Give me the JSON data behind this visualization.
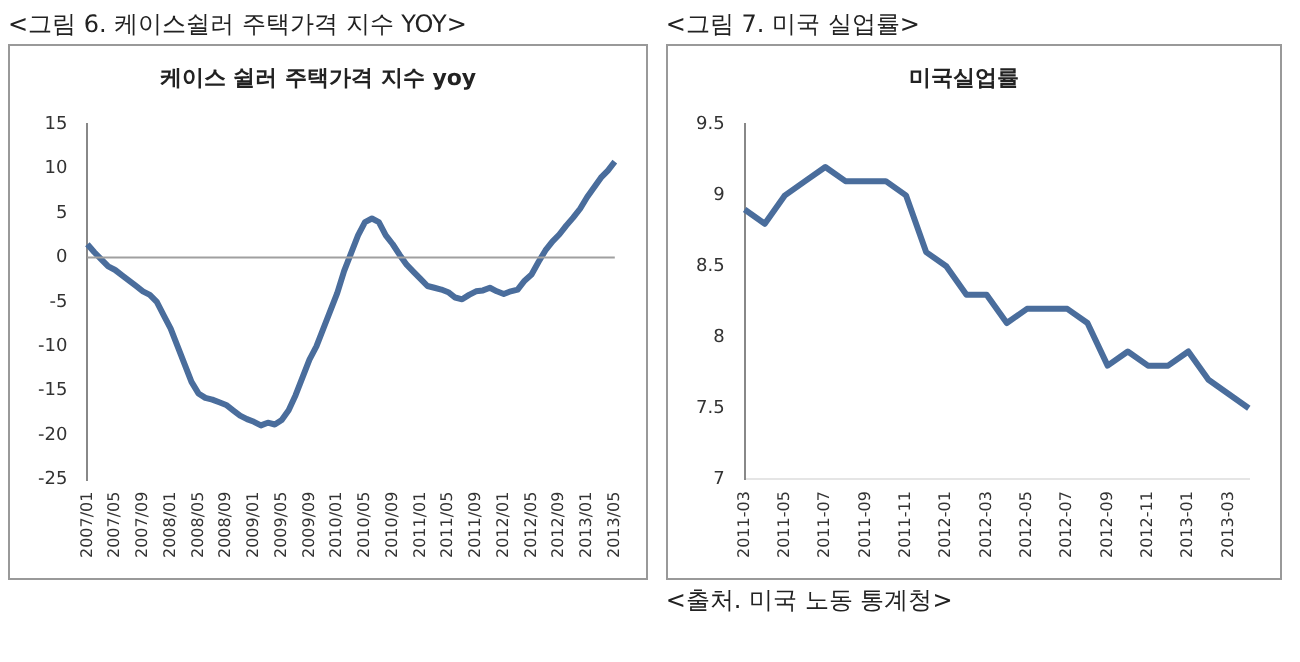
{
  "chart_data": [
    {
      "type": "line",
      "subtitle": "<그림 6. 케이스쉴러 주택가격 지수 YOY>",
      "title": "케이스 쉴러 주택가격 지수 yoy",
      "categories": [
        "2007/01",
        null,
        null,
        null,
        "2007/05",
        null,
        null,
        null,
        "2007/09",
        null,
        null,
        null,
        "2008/01",
        null,
        null,
        null,
        "2008/05",
        null,
        null,
        null,
        "2008/09",
        null,
        null,
        null,
        "2009/01",
        null,
        null,
        null,
        "2009/05",
        null,
        null,
        null,
        "2009/09",
        null,
        null,
        null,
        "2010/01",
        null,
        null,
        null,
        "2010/05",
        null,
        null,
        null,
        "2010/09",
        null,
        null,
        null,
        "2011/01",
        null,
        null,
        null,
        "2011/05",
        null,
        null,
        null,
        "2011/09",
        null,
        null,
        null,
        "2012/01",
        null,
        null,
        null,
        "2012/05",
        null,
        null,
        null,
        "2012/09",
        null,
        null,
        null,
        "2013/01",
        null,
        null,
        null,
        "2013/05"
      ],
      "series": [
        {
          "color": "#4a6d9c",
          "values": [
            1.5,
            0.6,
            -0.2,
            -1.0,
            -1.4,
            -2.0,
            -2.6,
            -3.2,
            -3.8,
            -4.2,
            -5.0,
            -6.5,
            -8.0,
            -10.0,
            -12.0,
            -14.0,
            -15.3,
            -15.8,
            -16.0,
            -16.3,
            -16.6,
            -17.2,
            -17.8,
            -18.2,
            -18.5,
            -18.9,
            -18.6,
            -18.8,
            -18.3,
            -17.2,
            -15.5,
            -13.5,
            -11.5,
            -10.0,
            -8.0,
            -6.0,
            -4.0,
            -1.5,
            0.5,
            2.5,
            4.0,
            4.4,
            4.0,
            2.5,
            1.5,
            0.3,
            -0.8,
            -1.6,
            -2.4,
            -3.2,
            -3.4,
            -3.6,
            -3.9,
            -4.5,
            -4.7,
            -4.2,
            -3.8,
            -3.7,
            -3.4,
            -3.8,
            -4.1,
            -3.8,
            -3.6,
            -2.6,
            -1.9,
            -0.5,
            0.8,
            1.8,
            2.6,
            3.6,
            4.5,
            5.5,
            6.8,
            7.9,
            9.0,
            9.8,
            10.8
          ]
        }
      ],
      "ylim": [
        -25,
        15
      ],
      "yticks": [
        -25,
        -20,
        -15,
        -10,
        -5,
        0,
        5,
        10,
        15
      ],
      "grid": false,
      "legend": false,
      "marker": "none",
      "line_style": "solid",
      "ref_lines": [
        {
          "axis": "y",
          "value": 0,
          "color": "#a0a0a0"
        }
      ]
    },
    {
      "type": "line",
      "subtitle": "<그림 7. 미국 실업률>",
      "title": "미국실업률",
      "categories": [
        "2011-03",
        null,
        "2011-05",
        null,
        "2011-07",
        null,
        "2011-09",
        null,
        "2011-11",
        null,
        "2012-01",
        null,
        "2012-03",
        null,
        "2012-05",
        null,
        "2012-07",
        null,
        "2012-09",
        null,
        "2012-11",
        null,
        "2013-01",
        null,
        "2013-03",
        null
      ],
      "series": [
        {
          "color": "#4a6d9c",
          "values": [
            8.9,
            8.8,
            9.0,
            9.1,
            9.2,
            9.1,
            9.1,
            9.1,
            9.0,
            8.6,
            8.5,
            8.3,
            8.3,
            8.1,
            8.2,
            8.2,
            8.2,
            8.1,
            7.8,
            7.9,
            7.8,
            7.8,
            7.9,
            7.7,
            7.6,
            7.5
          ]
        }
      ],
      "ylim": [
        7,
        9.5
      ],
      "yticks": [
        7,
        7.5,
        8,
        8.5,
        9,
        9.5
      ],
      "grid": false,
      "legend": false,
      "marker": "none",
      "line_style": "solid",
      "annotations": [
        "<출처. 미국 노동 통계청>"
      ]
    }
  ]
}
